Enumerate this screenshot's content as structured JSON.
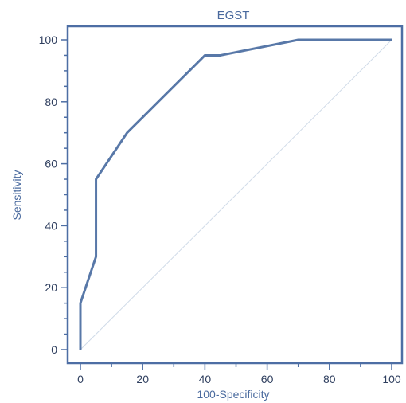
{
  "chart_data": {
    "type": "line",
    "title": "EGST",
    "xlabel": "100-Specificity",
    "ylabel": "Sensitivity",
    "xlim": [
      0,
      100
    ],
    "ylim": [
      0,
      100
    ],
    "xticks": [
      0,
      20,
      40,
      60,
      80,
      100
    ],
    "yticks": [
      0,
      20,
      40,
      60,
      80,
      100
    ],
    "grid": false,
    "colors": {
      "roc": "#5878a8",
      "axes": "#4d6ea4",
      "diagonal": "#d0dbe8",
      "text": "#4a6a9e"
    },
    "series": [
      {
        "x": [
          0,
          0,
          5,
          5,
          15,
          40,
          45,
          70,
          100
        ],
        "y": [
          0,
          15,
          30,
          55,
          70,
          95,
          95,
          100,
          100
        ]
      }
    ],
    "reference_line": {
      "x": [
        0,
        100
      ],
      "y": [
        0,
        100
      ]
    }
  }
}
